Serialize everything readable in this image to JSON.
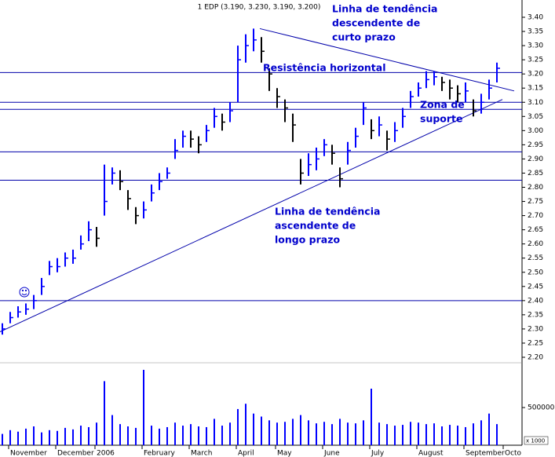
{
  "chart_data": {
    "type": "ohlc",
    "title": "1 EDP (3.190, 3.230, 3.190, 3.200)",
    "categories": [
      null,
      "November",
      null,
      null,
      null,
      null,
      null,
      "December",
      null,
      null,
      null,
      null,
      "2006",
      null,
      null,
      null,
      null,
      null,
      "February",
      null,
      null,
      null,
      null,
      null,
      "March",
      null,
      null,
      null,
      null,
      null,
      "April",
      null,
      null,
      null,
      null,
      "May",
      null,
      null,
      null,
      null,
      null,
      "June",
      null,
      null,
      null,
      null,
      null,
      "July",
      null,
      null,
      null,
      null,
      null,
      "August",
      null,
      null,
      null,
      null,
      null,
      "September",
      null,
      null,
      null,
      null,
      "Octo"
    ],
    "high": [
      2.32,
      2.36,
      2.38,
      2.39,
      2.42,
      2.48,
      2.54,
      2.55,
      2.57,
      2.58,
      2.63,
      2.68,
      2.66,
      2.88,
      2.87,
      2.86,
      2.79,
      2.73,
      2.75,
      2.81,
      2.85,
      2.87,
      2.97,
      3.0,
      3.0,
      2.98,
      3.02,
      3.08,
      3.06,
      3.1,
      3.3,
      3.34,
      3.36,
      3.33,
      3.22,
      3.15,
      3.11,
      3.06,
      2.9,
      2.92,
      2.94,
      2.97,
      2.95,
      2.87,
      2.96,
      3.01,
      3.1,
      3.04,
      3.05,
      3.0,
      3.03,
      3.08,
      3.14,
      3.17,
      3.21,
      3.21,
      3.19,
      3.18,
      3.16,
      3.17,
      3.11,
      3.13,
      3.18,
      3.24,
      null
    ],
    "low": [
      2.28,
      2.32,
      2.34,
      2.35,
      2.37,
      2.42,
      2.49,
      2.5,
      2.52,
      2.53,
      2.58,
      2.61,
      2.59,
      2.7,
      2.81,
      2.79,
      2.72,
      2.67,
      2.69,
      2.75,
      2.79,
      2.83,
      2.9,
      2.94,
      2.94,
      2.92,
      2.96,
      3.01,
      3.0,
      3.03,
      3.1,
      3.24,
      3.28,
      3.24,
      3.14,
      3.08,
      3.03,
      2.96,
      2.81,
      2.84,
      2.86,
      2.91,
      2.88,
      2.8,
      2.88,
      2.94,
      3.02,
      2.97,
      2.98,
      2.93,
      2.96,
      3.01,
      3.08,
      3.12,
      3.15,
      3.16,
      3.14,
      3.11,
      3.1,
      3.1,
      3.05,
      3.06,
      3.11,
      3.17,
      null
    ],
    "close": [
      2.3,
      2.34,
      2.36,
      2.37,
      2.4,
      2.45,
      2.52,
      2.52,
      2.55,
      2.55,
      2.6,
      2.65,
      2.62,
      2.75,
      2.85,
      2.82,
      2.76,
      2.7,
      2.72,
      2.78,
      2.82,
      2.85,
      2.93,
      2.98,
      2.97,
      2.95,
      3.0,
      3.05,
      3.03,
      3.07,
      3.25,
      3.3,
      3.32,
      3.28,
      3.2,
      3.12,
      3.08,
      3.02,
      2.85,
      2.88,
      2.9,
      2.95,
      2.92,
      2.83,
      2.93,
      2.98,
      3.08,
      3.0,
      3.02,
      2.97,
      3.0,
      3.05,
      3.12,
      3.15,
      3.18,
      3.19,
      3.17,
      3.15,
      3.13,
      3.14,
      3.07,
      3.1,
      3.15,
      3.22,
      null
    ],
    "up_color": "#0000ff",
    "down_color": "#000000",
    "ylim": [
      2.2,
      3.4
    ],
    "yticks": [
      {
        "value": 2.2,
        "label": "2.20"
      },
      {
        "value": 2.25,
        "label": "2.25"
      },
      {
        "value": 2.3,
        "label": "2.30"
      },
      {
        "value": 2.35,
        "label": "2.35"
      },
      {
        "value": 2.4,
        "label": "2.40"
      },
      {
        "value": 2.45,
        "label": "2.45"
      },
      {
        "value": 2.5,
        "label": "2.50"
      },
      {
        "value": 2.55,
        "label": "2.55"
      },
      {
        "value": 2.6,
        "label": "2.60"
      },
      {
        "value": 2.65,
        "label": "2.65"
      },
      {
        "value": 2.7,
        "label": "2.70"
      },
      {
        "value": 2.75,
        "label": "2.75"
      },
      {
        "value": 2.8,
        "label": "2.80"
      },
      {
        "value": 2.85,
        "label": "2.85"
      },
      {
        "value": 2.9,
        "label": "2.90"
      },
      {
        "value": 2.95,
        "label": "2.95"
      },
      {
        "value": 3.0,
        "label": "3.00"
      },
      {
        "value": 3.05,
        "label": "3.05"
      },
      {
        "value": 3.1,
        "label": "3.10"
      },
      {
        "value": 3.15,
        "label": "3.15"
      },
      {
        "value": 3.2,
        "label": "3.20"
      },
      {
        "value": 3.25,
        "label": "3.25"
      },
      {
        "value": 3.3,
        "label": "3.30"
      },
      {
        "value": 3.35,
        "label": "3.35"
      },
      {
        "value": 3.4,
        "label": "3.40"
      }
    ],
    "levels": [
      3.205,
      3.1,
      3.075,
      2.925,
      2.825,
      2.4
    ],
    "line_color": "#0000aa",
    "trendlines": [
      {
        "x": [
          32.8,
          65.2
        ],
        "y": [
          3.36,
          3.14
        ]
      },
      {
        "x": [
          -0.3,
          63.7
        ],
        "y": [
          2.29,
          3.11
        ]
      }
    ],
    "annotations": [
      {
        "lines": [
          "Linha de tendência",
          "descendente de",
          "curto prazo"
        ]
      },
      {
        "lines": [
          "Resistência horizontal"
        ]
      },
      {
        "lines": [
          "Zona de",
          "suporte"
        ]
      },
      {
        "lines": [
          "Linha de tendência",
          "ascendente de",
          "longo prazo"
        ]
      }
    ],
    "volume": {
      "values": [
        150000,
        200000,
        180000,
        220000,
        250000,
        170000,
        200000,
        190000,
        230000,
        210000,
        260000,
        240000,
        300000,
        850000,
        400000,
        280000,
        250000,
        230000,
        1000000,
        260000,
        220000,
        240000,
        300000,
        260000,
        280000,
        250000,
        240000,
        350000,
        260000,
        300000,
        480000,
        550000,
        420000,
        380000,
        330000,
        300000,
        310000,
        350000,
        400000,
        330000,
        290000,
        310000,
        280000,
        350000,
        300000,
        290000,
        330000,
        750000,
        300000,
        280000,
        260000,
        270000,
        310000,
        300000,
        280000,
        290000,
        250000,
        270000,
        260000,
        240000,
        290000,
        330000,
        420000,
        280000,
        null
      ],
      "color": "#0000ff",
      "ylim": [
        0,
        1000000
      ],
      "yticks": [
        500000
      ],
      "unit_label": "x 1000"
    }
  }
}
